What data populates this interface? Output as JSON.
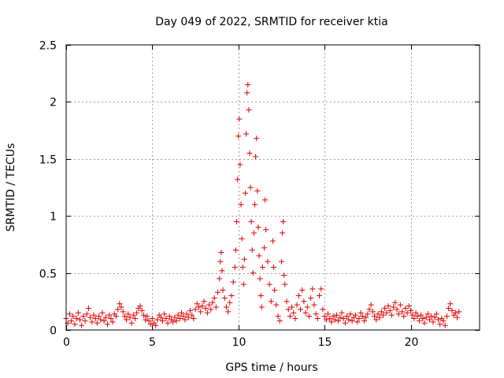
{
  "chart_data": {
    "type": "scatter",
    "title": "Day 049 of 2022, SRMTID for receiver ktia",
    "xlabel": "GPS time / hours",
    "ylabel": "SRMTID / TECUs",
    "xlim": [
      0,
      24
    ],
    "ylim": [
      0,
      2.5
    ],
    "x_ticks": [
      0,
      5,
      10,
      15,
      20
    ],
    "y_ticks": [
      0,
      0.5,
      1,
      1.5,
      2,
      2.5
    ],
    "x_tick_labels": [
      "0",
      "5",
      "10",
      "15",
      "20"
    ],
    "y_tick_labels": [
      "0",
      "0.5",
      "1",
      "1.5",
      "2",
      "2.5"
    ],
    "grid": true,
    "marker": "+",
    "color": "#e00000",
    "series": [
      {
        "name": "SRMTID",
        "points": [
          [
            0.0,
            0.1
          ],
          [
            0.1,
            0.06
          ],
          [
            0.2,
            0.14
          ],
          [
            0.3,
            0.08
          ],
          [
            0.4,
            0.12
          ],
          [
            0.5,
            0.05
          ],
          [
            0.6,
            0.1
          ],
          [
            0.7,
            0.15
          ],
          [
            0.8,
            0.09
          ],
          [
            0.9,
            0.04
          ],
          [
            1.0,
            0.12
          ],
          [
            1.1,
            0.08
          ],
          [
            1.2,
            0.14
          ],
          [
            1.3,
            0.19
          ],
          [
            1.4,
            0.11
          ],
          [
            1.5,
            0.07
          ],
          [
            1.6,
            0.13
          ],
          [
            1.7,
            0.1
          ],
          [
            1.8,
            0.06
          ],
          [
            1.9,
            0.12
          ],
          [
            2.0,
            0.09
          ],
          [
            2.1,
            0.15
          ],
          [
            2.2,
            0.08
          ],
          [
            2.3,
            0.11
          ],
          [
            2.4,
            0.05
          ],
          [
            2.5,
            0.13
          ],
          [
            2.6,
            0.1
          ],
          [
            2.7,
            0.07
          ],
          [
            2.8,
            0.14
          ],
          [
            2.9,
            0.12
          ],
          [
            3.0,
            0.18
          ],
          [
            3.1,
            0.23
          ],
          [
            3.2,
            0.2
          ],
          [
            3.3,
            0.16
          ],
          [
            3.4,
            0.12
          ],
          [
            3.5,
            0.09
          ],
          [
            3.6,
            0.14
          ],
          [
            3.7,
            0.11
          ],
          [
            3.8,
            0.06
          ],
          [
            3.9,
            0.13
          ],
          [
            4.0,
            0.1
          ],
          [
            4.1,
            0.15
          ],
          [
            4.2,
            0.19
          ],
          [
            4.3,
            0.21
          ],
          [
            4.4,
            0.17
          ],
          [
            4.5,
            0.13
          ],
          [
            4.6,
            0.09
          ],
          [
            4.7,
            0.12
          ],
          [
            4.8,
            0.08
          ],
          [
            4.9,
            0.05
          ],
          [
            5.0,
            0.1
          ],
          [
            5.1,
            0.06
          ],
          [
            5.2,
            0.04
          ],
          [
            5.3,
            0.09
          ],
          [
            5.4,
            0.13
          ],
          [
            5.5,
            0.11
          ],
          [
            5.6,
            0.08
          ],
          [
            5.7,
            0.14
          ],
          [
            5.8,
            0.1
          ],
          [
            5.9,
            0.06
          ],
          [
            6.0,
            0.12
          ],
          [
            6.1,
            0.09
          ],
          [
            6.2,
            0.07
          ],
          [
            6.3,
            0.11
          ],
          [
            6.4,
            0.08
          ],
          [
            6.5,
            0.13
          ],
          [
            6.6,
            0.1
          ],
          [
            6.7,
            0.15
          ],
          [
            6.8,
            0.12
          ],
          [
            6.9,
            0.09
          ],
          [
            7.0,
            0.14
          ],
          [
            7.1,
            0.11
          ],
          [
            7.2,
            0.17
          ],
          [
            7.3,
            0.13
          ],
          [
            7.4,
            0.1
          ],
          [
            7.5,
            0.18
          ],
          [
            7.6,
            0.23
          ],
          [
            7.7,
            0.2
          ],
          [
            7.8,
            0.16
          ],
          [
            7.9,
            0.21
          ],
          [
            8.0,
            0.25
          ],
          [
            8.1,
            0.19
          ],
          [
            8.2,
            0.15
          ],
          [
            8.3,
            0.22
          ],
          [
            8.4,
            0.18
          ],
          [
            8.5,
            0.24
          ],
          [
            8.6,
            0.28
          ],
          [
            8.7,
            0.2
          ],
          [
            8.8,
            0.33
          ],
          [
            8.9,
            0.45
          ],
          [
            8.95,
            0.6
          ],
          [
            9.0,
            0.68
          ],
          [
            9.05,
            0.52
          ],
          [
            9.1,
            0.35
          ],
          [
            9.2,
            0.28
          ],
          [
            9.3,
            0.2
          ],
          [
            9.4,
            0.16
          ],
          [
            9.5,
            0.24
          ],
          [
            9.6,
            0.3
          ],
          [
            9.7,
            0.42
          ],
          [
            9.8,
            0.55
          ],
          [
            9.85,
            0.7
          ],
          [
            9.9,
            0.95
          ],
          [
            9.95,
            1.32
          ],
          [
            10.0,
            1.7
          ],
          [
            10.05,
            1.85
          ],
          [
            10.1,
            1.45
          ],
          [
            10.15,
            1.1
          ],
          [
            10.2,
            0.8
          ],
          [
            10.25,
            0.55
          ],
          [
            10.3,
            0.4
          ],
          [
            10.35,
            0.62
          ],
          [
            10.4,
            1.2
          ],
          [
            10.45,
            1.72
          ],
          [
            10.5,
            2.08
          ],
          [
            10.55,
            2.15
          ],
          [
            10.6,
            1.93
          ],
          [
            10.65,
            1.55
          ],
          [
            10.7,
            1.25
          ],
          [
            10.75,
            0.95
          ],
          [
            10.8,
            0.7
          ],
          [
            10.85,
            0.5
          ],
          [
            10.9,
            0.85
          ],
          [
            10.95,
            1.1
          ],
          [
            11.0,
            1.52
          ],
          [
            11.05,
            1.68
          ],
          [
            11.1,
            1.22
          ],
          [
            11.15,
            0.9
          ],
          [
            11.2,
            0.65
          ],
          [
            11.25,
            0.45
          ],
          [
            11.3,
            0.3
          ],
          [
            11.35,
            0.2
          ],
          [
            11.4,
            0.55
          ],
          [
            11.5,
            0.72
          ],
          [
            11.55,
            1.14
          ],
          [
            11.6,
            0.88
          ],
          [
            11.7,
            0.6
          ],
          [
            11.8,
            0.4
          ],
          [
            11.9,
            0.25
          ],
          [
            12.0,
            0.78
          ],
          [
            12.05,
            0.55
          ],
          [
            12.1,
            0.35
          ],
          [
            12.2,
            0.22
          ],
          [
            12.3,
            0.12
          ],
          [
            12.4,
            0.08
          ],
          [
            12.5,
            0.6
          ],
          [
            12.55,
            0.85
          ],
          [
            12.6,
            0.95
          ],
          [
            12.65,
            0.48
          ],
          [
            12.7,
            0.4
          ],
          [
            12.8,
            0.25
          ],
          [
            12.9,
            0.18
          ],
          [
            13.0,
            0.12
          ],
          [
            13.1,
            0.2
          ],
          [
            13.2,
            0.15
          ],
          [
            13.3,
            0.1
          ],
          [
            13.4,
            0.22
          ],
          [
            13.5,
            0.3
          ],
          [
            13.6,
            0.18
          ],
          [
            13.7,
            0.35
          ],
          [
            13.8,
            0.25
          ],
          [
            13.9,
            0.15
          ],
          [
            14.0,
            0.2
          ],
          [
            14.1,
            0.12
          ],
          [
            14.2,
            0.28
          ],
          [
            14.3,
            0.36
          ],
          [
            14.4,
            0.22
          ],
          [
            14.5,
            0.14
          ],
          [
            14.6,
            0.1
          ],
          [
            14.7,
            0.3
          ],
          [
            14.8,
            0.36
          ],
          [
            14.9,
            0.18
          ],
          [
            15.0,
            0.12
          ],
          [
            15.1,
            0.09
          ],
          [
            15.2,
            0.14
          ],
          [
            15.3,
            0.1
          ],
          [
            15.4,
            0.07
          ],
          [
            15.5,
            0.12
          ],
          [
            15.6,
            0.09
          ],
          [
            15.7,
            0.13
          ],
          [
            15.8,
            0.08
          ],
          [
            15.9,
            0.11
          ],
          [
            16.0,
            0.15
          ],
          [
            16.1,
            0.1
          ],
          [
            16.2,
            0.06
          ],
          [
            16.3,
            0.12
          ],
          [
            16.4,
            0.09
          ],
          [
            16.5,
            0.14
          ],
          [
            16.6,
            0.08
          ],
          [
            16.7,
            0.11
          ],
          [
            16.8,
            0.13
          ],
          [
            16.9,
            0.07
          ],
          [
            17.0,
            0.1
          ],
          [
            17.1,
            0.15
          ],
          [
            17.2,
            0.12
          ],
          [
            17.3,
            0.08
          ],
          [
            17.4,
            0.11
          ],
          [
            17.5,
            0.14
          ],
          [
            17.6,
            0.18
          ],
          [
            17.7,
            0.22
          ],
          [
            17.8,
            0.16
          ],
          [
            17.9,
            0.12
          ],
          [
            18.0,
            0.09
          ],
          [
            18.1,
            0.14
          ],
          [
            18.2,
            0.11
          ],
          [
            18.3,
            0.16
          ],
          [
            18.4,
            0.13
          ],
          [
            18.5,
            0.19
          ],
          [
            18.6,
            0.15
          ],
          [
            18.7,
            0.21
          ],
          [
            18.8,
            0.17
          ],
          [
            18.9,
            0.13
          ],
          [
            19.0,
            0.2
          ],
          [
            19.1,
            0.24
          ],
          [
            19.2,
            0.18
          ],
          [
            19.3,
            0.14
          ],
          [
            19.4,
            0.22
          ],
          [
            19.5,
            0.16
          ],
          [
            19.6,
            0.12
          ],
          [
            19.7,
            0.19
          ],
          [
            19.8,
            0.15
          ],
          [
            19.9,
            0.21
          ],
          [
            20.0,
            0.17
          ],
          [
            20.1,
            0.13
          ],
          [
            20.2,
            0.1
          ],
          [
            20.3,
            0.15
          ],
          [
            20.4,
            0.12
          ],
          [
            20.5,
            0.08
          ],
          [
            20.6,
            0.13
          ],
          [
            20.7,
            0.1
          ],
          [
            20.8,
            0.06
          ],
          [
            20.9,
            0.11
          ],
          [
            21.0,
            0.14
          ],
          [
            21.1,
            0.09
          ],
          [
            21.2,
            0.12
          ],
          [
            21.3,
            0.07
          ],
          [
            21.4,
            0.11
          ],
          [
            21.5,
            0.14
          ],
          [
            21.6,
            0.09
          ],
          [
            21.7,
            0.05
          ],
          [
            21.8,
            0.1
          ],
          [
            21.9,
            0.08
          ],
          [
            22.0,
            0.04
          ],
          [
            22.1,
            0.12
          ],
          [
            22.2,
            0.19
          ],
          [
            22.3,
            0.23
          ],
          [
            22.4,
            0.17
          ],
          [
            22.5,
            0.13
          ],
          [
            22.6,
            0.15
          ],
          [
            22.7,
            0.11
          ],
          [
            22.8,
            0.16
          ]
        ]
      }
    ]
  }
}
